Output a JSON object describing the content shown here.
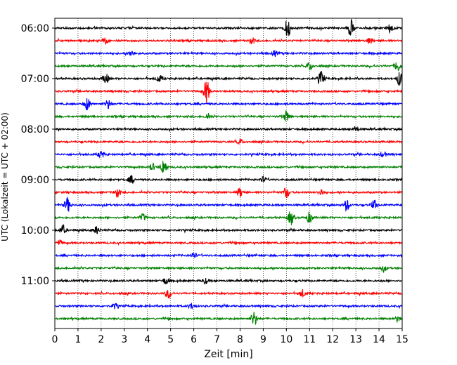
{
  "chart_data": {
    "type": "line",
    "title": "",
    "xlabel": "Zeit  [min]",
    "ylabel": "UTC (Lokalzeit = UTC + 02:00)",
    "xlim": [
      0,
      15
    ],
    "x_ticks": [
      "0",
      "1",
      "2",
      "3",
      "4",
      "5",
      "6",
      "7",
      "8",
      "9",
      "10",
      "11",
      "12",
      "13",
      "14",
      "15"
    ],
    "y_ticks": [
      "06:00",
      "07:00",
      "08:00",
      "09:00",
      "10:00",
      "11:00"
    ],
    "grid": "vertical dotted at each minute",
    "trace_interval_min": 15,
    "start_time": "06:00",
    "colors_cycle": [
      "#000000",
      "#ff0000",
      "#0000ff",
      "#008000"
    ],
    "traces": [
      {
        "time": "06:00",
        "color": "#000000",
        "events": [
          {
            "t": 10.05,
            "amp": 1.0
          },
          {
            "t": 12.8,
            "amp": 0.9
          },
          {
            "t": 14.5,
            "amp": 0.5
          }
        ]
      },
      {
        "time": "06:15",
        "color": "#ff0000",
        "events": [
          {
            "t": 2.2,
            "amp": 0.3
          },
          {
            "t": 8.5,
            "amp": 0.3
          },
          {
            "t": 13.6,
            "amp": 0.3
          }
        ]
      },
      {
        "time": "06:30",
        "color": "#0000ff",
        "events": [
          {
            "t": 3.3,
            "amp": 0.3
          },
          {
            "t": 9.5,
            "amp": 0.3
          }
        ]
      },
      {
        "time": "06:45",
        "color": "#008000",
        "events": [
          {
            "t": 11.0,
            "amp": 0.45
          },
          {
            "t": 14.8,
            "amp": 0.6
          }
        ]
      },
      {
        "time": "07:00",
        "color": "#000000",
        "events": [
          {
            "t": 2.2,
            "amp": 0.6
          },
          {
            "t": 4.5,
            "amp": 0.4
          },
          {
            "t": 11.5,
            "amp": 0.8
          },
          {
            "t": 14.9,
            "amp": 0.8
          }
        ]
      },
      {
        "time": "07:15",
        "color": "#ff0000",
        "events": [
          {
            "t": 6.55,
            "amp": 1.3
          }
        ]
      },
      {
        "time": "07:30",
        "color": "#0000ff",
        "events": [
          {
            "t": 1.4,
            "amp": 0.7
          },
          {
            "t": 2.3,
            "amp": 0.5
          }
        ]
      },
      {
        "time": "07:45",
        "color": "#008000",
        "events": [
          {
            "t": 6.6,
            "amp": 0.3
          },
          {
            "t": 10.0,
            "amp": 0.6
          }
        ]
      },
      {
        "time": "08:00",
        "color": "#000000",
        "events": [
          {
            "t": 13.0,
            "amp": 0.3
          }
        ]
      },
      {
        "time": "08:15",
        "color": "#ff0000",
        "events": [
          {
            "t": 8.0,
            "amp": 0.3
          }
        ]
      },
      {
        "time": "08:30",
        "color": "#0000ff",
        "events": [
          {
            "t": 2.0,
            "amp": 0.4
          },
          {
            "t": 14.2,
            "amp": 0.3
          }
        ]
      },
      {
        "time": "08:45",
        "color": "#008000",
        "events": [
          {
            "t": 4.7,
            "amp": 0.9
          },
          {
            "t": 4.2,
            "amp": 0.4
          }
        ]
      },
      {
        "time": "09:00",
        "color": "#000000",
        "events": [
          {
            "t": 3.3,
            "amp": 0.4
          },
          {
            "t": 9.0,
            "amp": 0.3
          }
        ]
      },
      {
        "time": "09:15",
        "color": "#ff0000",
        "events": [
          {
            "t": 2.7,
            "amp": 0.5
          },
          {
            "t": 8.0,
            "amp": 0.5
          },
          {
            "t": 10.0,
            "amp": 0.6
          },
          {
            "t": 11.5,
            "amp": 0.4
          }
        ]
      },
      {
        "time": "09:30",
        "color": "#0000ff",
        "events": [
          {
            "t": 0.55,
            "amp": 0.8
          },
          {
            "t": 12.6,
            "amp": 0.6
          },
          {
            "t": 13.8,
            "amp": 0.5
          }
        ]
      },
      {
        "time": "09:45",
        "color": "#008000",
        "events": [
          {
            "t": 3.8,
            "amp": 0.4
          },
          {
            "t": 10.2,
            "amp": 0.8
          },
          {
            "t": 11.0,
            "amp": 0.6
          }
        ]
      },
      {
        "time": "10:00",
        "color": "#000000",
        "events": [
          {
            "t": 0.35,
            "amp": 0.5
          },
          {
            "t": 1.8,
            "amp": 0.4
          }
        ]
      },
      {
        "time": "10:15",
        "color": "#ff0000",
        "events": [
          {
            "t": 0.2,
            "amp": 0.3
          }
        ]
      },
      {
        "time": "10:30",
        "color": "#0000ff",
        "events": [
          {
            "t": 6.0,
            "amp": 0.3
          }
        ]
      },
      {
        "time": "10:45",
        "color": "#008000",
        "events": [
          {
            "t": 14.2,
            "amp": 0.3
          }
        ]
      },
      {
        "time": "11:00",
        "color": "#000000",
        "events": [
          {
            "t": 4.8,
            "amp": 0.4
          },
          {
            "t": 6.5,
            "amp": 0.3
          }
        ]
      },
      {
        "time": "11:15",
        "color": "#ff0000",
        "events": [
          {
            "t": 4.9,
            "amp": 0.5
          },
          {
            "t": 10.7,
            "amp": 0.4
          }
        ]
      },
      {
        "time": "11:30",
        "color": "#0000ff",
        "events": [
          {
            "t": 2.6,
            "amp": 0.3
          },
          {
            "t": 5.9,
            "amp": 0.3
          }
        ]
      },
      {
        "time": "11:45",
        "color": "#008000",
        "events": [
          {
            "t": 8.6,
            "amp": 0.8
          },
          {
            "t": 14.8,
            "amp": 0.3
          }
        ]
      }
    ]
  }
}
